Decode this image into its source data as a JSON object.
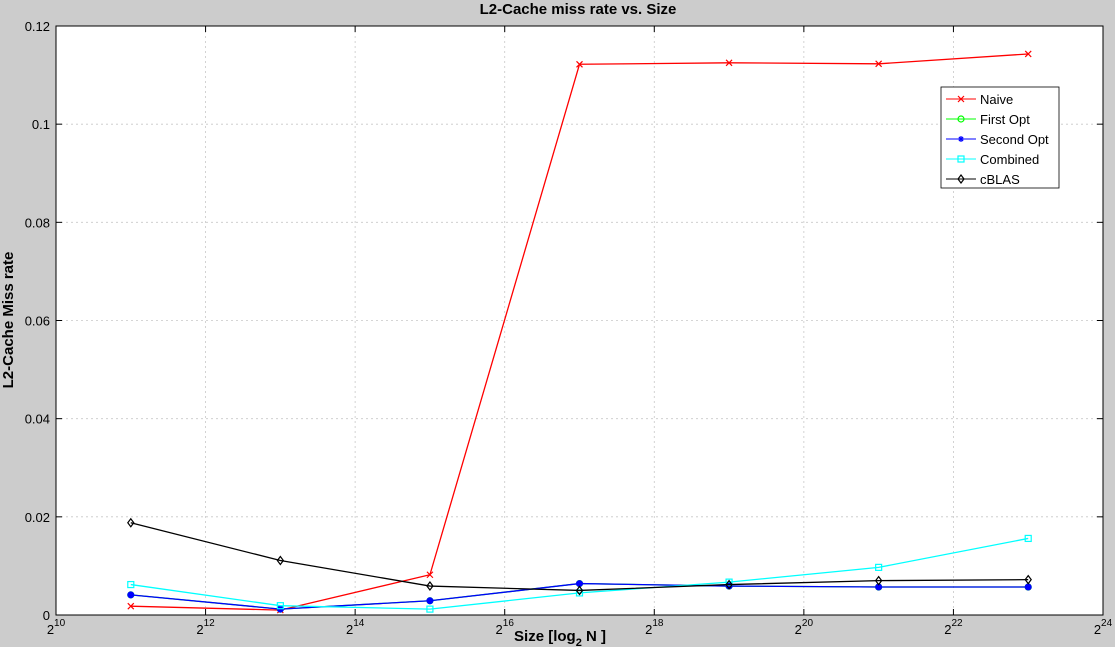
{
  "chart_data": {
    "type": "line",
    "title": "L2-Cache miss rate vs. Size",
    "xlabel": {
      "prefix": "Size [log",
      "sub": "2",
      "suffix": " N ]"
    },
    "ylabel": "L2-Cache Miss rate",
    "x_scale": "log2",
    "xlim_exponent": [
      10,
      24
    ],
    "x_ticks": [
      {
        "base": "2",
        "exp": "10",
        "e": 10
      },
      {
        "base": "2",
        "exp": "12",
        "e": 12
      },
      {
        "base": "2",
        "exp": "14",
        "e": 14
      },
      {
        "base": "2",
        "exp": "16",
        "e": 16
      },
      {
        "base": "2",
        "exp": "18",
        "e": 18
      },
      {
        "base": "2",
        "exp": "20",
        "e": 20
      },
      {
        "base": "2",
        "exp": "22",
        "e": 22
      },
      {
        "base": "2",
        "exp": "24",
        "e": 24
      }
    ],
    "ylim": [
      0,
      0.12
    ],
    "y_ticks": [
      {
        "value": 0,
        "label": "0"
      },
      {
        "value": 0.02,
        "label": "0.02"
      },
      {
        "value": 0.04,
        "label": "0.04"
      },
      {
        "value": 0.06,
        "label": "0.06"
      },
      {
        "value": 0.08,
        "label": "0.08"
      },
      {
        "value": 0.1,
        "label": "0.1"
      },
      {
        "value": 0.12,
        "label": "0.12"
      }
    ],
    "grid": true,
    "legend_position": "top-right",
    "x_exponents": [
      11,
      13,
      15,
      17,
      19,
      21,
      23
    ],
    "series": [
      {
        "name": "Naive",
        "color": "#ff0000",
        "marker": "x",
        "values": [
          0.0018,
          0.001,
          0.0082,
          0.1122,
          0.1125,
          0.1123,
          0.1143
        ]
      },
      {
        "name": "First Opt",
        "color": "#00ff00",
        "marker": "o",
        "values": [
          0.0041,
          0.0012,
          0.0029,
          0.0064,
          0.0059,
          0.0057,
          0.0057
        ]
      },
      {
        "name": "Second Opt",
        "color": "#0000ff",
        "marker": "*",
        "values": [
          0.0041,
          0.0012,
          0.0029,
          0.0064,
          0.0059,
          0.0057,
          0.0057
        ]
      },
      {
        "name": "Combined",
        "color": "#00ffff",
        "marker": "s",
        "values": [
          0.0062,
          0.0019,
          0.0012,
          0.0045,
          0.0067,
          0.0097,
          0.0156
        ]
      },
      {
        "name": "cBLAS",
        "color": "#000000",
        "marker": "d",
        "values": [
          0.0188,
          0.0111,
          0.0059,
          0.005,
          0.0062,
          0.007,
          0.0072
        ]
      }
    ]
  }
}
